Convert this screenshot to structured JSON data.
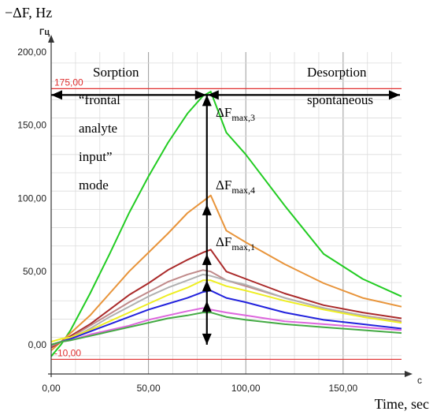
{
  "chart_data": {
    "type": "line",
    "ylabel": "−ΔF, Hz",
    "y_unit": "Гц",
    "xlabel": "Time, sec",
    "x_unit": "c",
    "xlim": [
      0,
      180
    ],
    "ylim": [
      -20,
      200
    ],
    "x_ticks": [
      "0,00",
      "50,00",
      "100,00",
      "150,00"
    ],
    "x_tick_values": [
      0,
      50,
      100,
      150
    ],
    "y_ticks": [
      "0,00",
      "50,00",
      "100,00",
      "150,00",
      "200,00"
    ],
    "y_tick_values": [
      0,
      50,
      100,
      150,
      200
    ],
    "grid": true,
    "reference_lines": [
      {
        "label": "175,00",
        "value": 175,
        "color": "#e03030"
      },
      {
        "label": "-10,00",
        "value": -10,
        "color": "#e03030"
      }
    ],
    "annotations": {
      "sorption": "Sorption",
      "desorption": "Desorption",
      "spontaneous": "spontaneous",
      "mode_lines": [
        "“frontal",
        "analyte",
        "input”",
        "mode"
      ],
      "dfmax3": {
        "base": "ΔF",
        "sub": "max,3"
      },
      "dfmax4": {
        "base": "ΔF",
        "sub": "max,4"
      },
      "dfmax1": {
        "base": "ΔF",
        "sub": "max,1"
      }
    },
    "series": [
      {
        "color": "#22cc22",
        "x": [
          0,
          5,
          10,
          20,
          30,
          40,
          50,
          60,
          70,
          78,
          82,
          90,
          100,
          120,
          140,
          160,
          180
        ],
        "y": [
          -8,
          0,
          10,
          35,
          62,
          90,
          115,
          138,
          158,
          170,
          173,
          145,
          130,
          95,
          62,
          45,
          33
        ]
      },
      {
        "color": "#e8943a",
        "x": [
          0,
          5,
          10,
          20,
          30,
          40,
          50,
          60,
          70,
          78,
          82,
          90,
          100,
          120,
          140,
          160,
          180
        ],
        "y": [
          -4,
          2,
          8,
          20,
          35,
          50,
          63,
          76,
          90,
          98,
          102,
          78,
          70,
          55,
          42,
          32,
          26
        ]
      },
      {
        "color": "#aa2a2a",
        "x": [
          0,
          5,
          10,
          20,
          30,
          40,
          50,
          60,
          70,
          78,
          82,
          90,
          100,
          120,
          140,
          160,
          180
        ],
        "y": [
          -2,
          2,
          6,
          14,
          24,
          34,
          42,
          51,
          58,
          63,
          65,
          50,
          45,
          35,
          27,
          22,
          18
        ]
      },
      {
        "color": "#c08a8a",
        "x": [
          0,
          5,
          10,
          20,
          30,
          40,
          50,
          60,
          70,
          78,
          82,
          90,
          100,
          120,
          140,
          160,
          180
        ],
        "y": [
          -1,
          2,
          5,
          13,
          21,
          29,
          36,
          43,
          48,
          51,
          50,
          44,
          40,
          32,
          25,
          20,
          16
        ]
      },
      {
        "color": "#b0b0b0",
        "x": [
          0,
          5,
          10,
          20,
          30,
          40,
          50,
          60,
          70,
          78,
          82,
          90,
          100,
          120,
          140,
          160,
          180
        ],
        "y": [
          0,
          2,
          4,
          11,
          19,
          26,
          33,
          39,
          44,
          48,
          47,
          44,
          41,
          32,
          25,
          20,
          15
        ]
      },
      {
        "color": "#eeee22",
        "x": [
          0,
          5,
          10,
          20,
          30,
          40,
          50,
          60,
          70,
          78,
          82,
          90,
          100,
          120,
          140,
          160,
          180
        ],
        "y": [
          2,
          4,
          5,
          10,
          16,
          22,
          28,
          34,
          39,
          44,
          44,
          40,
          37,
          30,
          24,
          19,
          15
        ]
      },
      {
        "color": "#2222dd",
        "x": [
          0,
          5,
          10,
          20,
          30,
          40,
          50,
          60,
          70,
          78,
          82,
          90,
          100,
          120,
          140,
          160,
          180
        ],
        "y": [
          0,
          2,
          4,
          9,
          14,
          19,
          24,
          28,
          32,
          36,
          37,
          32,
          29,
          22,
          17,
          14,
          11
        ]
      },
      {
        "color": "#dd66dd",
        "x": [
          0,
          5,
          10,
          20,
          30,
          40,
          50,
          60,
          70,
          78,
          82,
          90,
          100,
          120,
          140,
          160,
          180
        ],
        "y": [
          0,
          2,
          3,
          7,
          10,
          13,
          17,
          20,
          23,
          25,
          24,
          22,
          20,
          16,
          14,
          12,
          10
        ]
      },
      {
        "color": "#44aa44",
        "x": [
          0,
          5,
          10,
          20,
          30,
          40,
          50,
          60,
          70,
          78,
          82,
          90,
          100,
          120,
          140,
          160,
          180
        ],
        "y": [
          0,
          2,
          3,
          6,
          9,
          12,
          15,
          18,
          20,
          22,
          22,
          19,
          17,
          14,
          12,
          10,
          8
        ]
      }
    ]
  }
}
